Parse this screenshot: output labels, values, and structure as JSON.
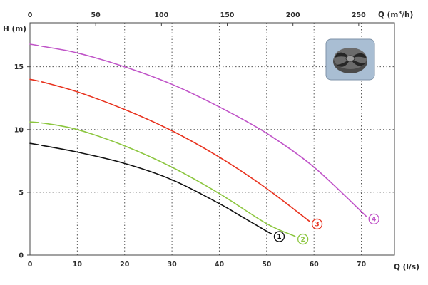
{
  "chart_data": {
    "type": "line",
    "xlabel": "Q (l/s)",
    "x2label_prefix": "Q (m",
    "x2label_sup": "3",
    "x2label_suffix": "/h)",
    "ylabel": "H (m)",
    "xlim": [
      0,
      77
    ],
    "ylim": [
      0,
      18.5
    ],
    "x_ticks": [
      0,
      10,
      20,
      30,
      40,
      50,
      60,
      70
    ],
    "x2_ticks": [
      0,
      50,
      100,
      150,
      200,
      250
    ],
    "y_ticks": [
      0,
      5,
      10,
      15
    ],
    "grid": true,
    "series": [
      {
        "label": "1",
        "color": "#111111",
        "x": [
          0,
          3,
          10,
          20,
          30,
          40,
          45,
          50,
          51
        ],
        "y": [
          8.9,
          8.7,
          8.2,
          7.3,
          6.0,
          4.1,
          3.0,
          1.9,
          1.7
        ]
      },
      {
        "label": "2",
        "color": "#8cc63f",
        "x": [
          0,
          3,
          10,
          20,
          30,
          40,
          50,
          56
        ],
        "y": [
          10.6,
          10.5,
          10.0,
          8.7,
          7.0,
          4.9,
          2.5,
          1.5
        ]
      },
      {
        "label": "3",
        "color": "#e8321e",
        "x": [
          0,
          3,
          10,
          20,
          30,
          40,
          50,
          59
        ],
        "y": [
          14.0,
          13.75,
          13.0,
          11.6,
          9.9,
          7.8,
          5.3,
          2.7
        ]
      },
      {
        "label": "4",
        "color": "#c054c8",
        "x": [
          0,
          3,
          10,
          20,
          30,
          40,
          50,
          60,
          71
        ],
        "y": [
          16.8,
          16.6,
          16.1,
          15.0,
          13.6,
          11.8,
          9.7,
          7.0,
          3.1
        ]
      }
    ]
  }
}
